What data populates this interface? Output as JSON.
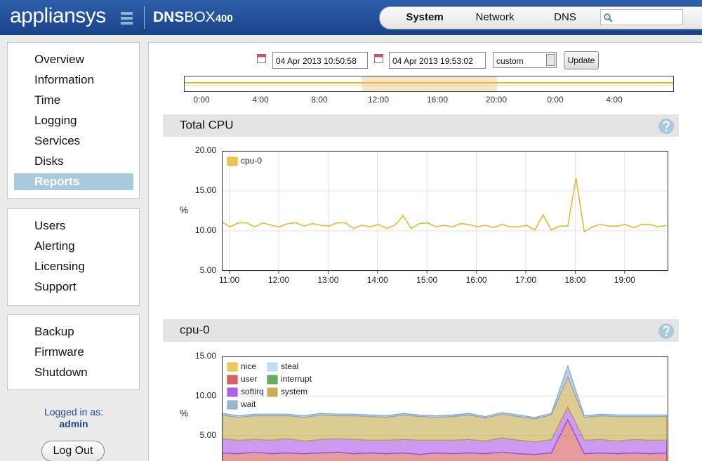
{
  "header": {
    "brand": "appliansys",
    "product": "DNS",
    "product_suffix": "BOX",
    "model": "400"
  },
  "nav": {
    "items": [
      "System",
      "Network",
      "DNS"
    ],
    "active": 0
  },
  "sidebar": {
    "groups": [
      {
        "items": [
          "Overview",
          "Information",
          "Time",
          "Logging",
          "Services",
          "Disks",
          "Reports"
        ],
        "selected": 6
      },
      {
        "items": [
          "Users",
          "Alerting",
          "Licensing",
          "Support"
        ]
      },
      {
        "items": [
          "Backup",
          "Firmware",
          "Shutdown"
        ]
      }
    ],
    "login_label": "Logged in as:",
    "user": "admin",
    "logout": "Log Out"
  },
  "toolbar": {
    "start": "04 Apr 2013 10:50:58",
    "end": "04 Apr 2013 19:53:02",
    "range": "custom",
    "button": "Update"
  },
  "timeline": {
    "labels": [
      "0:00",
      "4:00",
      "8:00",
      "12:00",
      "16:00",
      "20:00",
      "0:00",
      "4:00"
    ]
  },
  "charts": [
    {
      "type": "line",
      "title": "Total CPU",
      "ylabel": "%",
      "xlim": [
        "10:51",
        "19:53"
      ],
      "ylim": [
        5,
        20
      ],
      "yticks": [
        {
          "value": 5,
          "label": "5.00"
        },
        {
          "value": 10,
          "label": "10.00"
        },
        {
          "value": 15,
          "label": "15.00"
        },
        {
          "value": 20,
          "label": "20.00"
        }
      ],
      "xticks": [
        "11:00",
        "12:00",
        "13:00",
        "14:00",
        "15:00",
        "16:00",
        "17:00",
        "18:00",
        "19:00"
      ],
      "grid": true,
      "legend": "upper left",
      "legend_columns": 1,
      "x": [
        "10:51",
        "11:01",
        "11:11",
        "11:21",
        "11:31",
        "11:41",
        "11:51",
        "12:01",
        "12:11",
        "12:21",
        "12:31",
        "12:41",
        "12:51",
        "13:01",
        "13:11",
        "13:21",
        "13:31",
        "13:41",
        "13:51",
        "14:01",
        "14:11",
        "14:21",
        "14:31",
        "14:41",
        "14:51",
        "15:01",
        "15:11",
        "15:21",
        "15:31",
        "15:41",
        "15:51",
        "16:01",
        "16:11",
        "16:21",
        "16:31",
        "16:41",
        "16:51",
        "17:01",
        "17:11",
        "17:21",
        "17:31",
        "17:41",
        "17:51",
        "18:01",
        "18:11",
        "18:21",
        "18:31",
        "18:41",
        "18:51",
        "19:01",
        "19:11",
        "19:21",
        "19:31",
        "19:41",
        "19:51"
      ],
      "series": [
        {
          "name": "cpu-0",
          "color": "#e8b830",
          "values": [
            11.1,
            10.5,
            11.0,
            11.0,
            10.5,
            11.0,
            10.7,
            10.5,
            10.9,
            11.0,
            10.6,
            10.9,
            10.7,
            10.6,
            11.0,
            11.0,
            10.3,
            10.7,
            10.5,
            10.8,
            10.3,
            10.7,
            11.9,
            10.3,
            10.9,
            11.0,
            10.5,
            10.7,
            10.5,
            10.9,
            10.8,
            10.5,
            10.7,
            10.4,
            10.8,
            10.5,
            10.5,
            10.7,
            10.1,
            12.0,
            10.1,
            10.6,
            10.6,
            16.6,
            9.9,
            10.5,
            10.8,
            10.6,
            10.6,
            10.8,
            10.4,
            10.8,
            10.8,
            10.5,
            10.7
          ]
        }
      ]
    },
    {
      "type": "area",
      "stacked": true,
      "title": "cpu-0",
      "ylabel": "%",
      "xlim": [
        "10:51",
        "19:53"
      ],
      "ylim": [
        0,
        15
      ],
      "yticks": [
        {
          "value": 5,
          "label": "5.00"
        },
        {
          "value": 10,
          "label": "10.00"
        },
        {
          "value": 15,
          "label": "15.00"
        }
      ],
      "grid": true,
      "legend": "upper left",
      "legend_columns": 2,
      "x": [
        "10:51",
        "11:11",
        "11:31",
        "11:51",
        "12:11",
        "12:31",
        "12:51",
        "13:11",
        "13:31",
        "13:51",
        "14:11",
        "14:31",
        "14:51",
        "15:11",
        "15:31",
        "15:51",
        "16:11",
        "16:31",
        "16:51",
        "17:11",
        "17:31",
        "17:51",
        "18:11",
        "18:31",
        "18:51",
        "19:11",
        "19:31",
        "19:51"
      ],
      "series": [
        {
          "name": "nice",
          "color": "#e8c040",
          "values": [
            0,
            0,
            0,
            0,
            0,
            0,
            0,
            0,
            0,
            0,
            0,
            0,
            0,
            0,
            0,
            0,
            0,
            0,
            0,
            0,
            0,
            0,
            0,
            0,
            0,
            0,
            0,
            0
          ]
        },
        {
          "name": "steal",
          "color": "#b8d8f0",
          "values": [
            0,
            0,
            0,
            0,
            0,
            0,
            0,
            0,
            0,
            0,
            0,
            0,
            0,
            0,
            0,
            0,
            0,
            0,
            0,
            0,
            0,
            0,
            0,
            0,
            0,
            0,
            0,
            0
          ]
        },
        {
          "name": "user",
          "color": "#d04848",
          "values": [
            2.8,
            2.7,
            2.9,
            2.7,
            2.8,
            2.7,
            2.8,
            2.9,
            2.7,
            2.8,
            2.7,
            2.8,
            2.6,
            2.8,
            2.7,
            2.8,
            2.7,
            2.9,
            2.7,
            2.6,
            2.8,
            7.0,
            2.7,
            2.8,
            2.7,
            2.8,
            2.7,
            2.8
          ]
        },
        {
          "name": "interrupt",
          "color": "#48a048",
          "values": [
            0,
            0,
            0,
            0,
            0,
            0,
            0,
            0,
            0,
            0,
            0,
            0,
            0,
            0,
            0,
            0,
            0,
            0,
            0,
            0,
            0,
            0,
            0,
            0,
            0,
            0,
            0,
            0
          ]
        },
        {
          "name": "softirq",
          "color": "#a048e8",
          "values": [
            1.8,
            1.7,
            1.6,
            1.7,
            1.8,
            1.6,
            1.7,
            1.7,
            1.8,
            1.6,
            1.7,
            1.7,
            1.8,
            1.6,
            1.7,
            1.7,
            1.6,
            1.8,
            1.7,
            1.6,
            1.7,
            1.6,
            1.7,
            1.7,
            1.6,
            1.7,
            1.7,
            1.6
          ]
        },
        {
          "name": "system",
          "color": "#c0a038",
          "values": [
            3.0,
            2.9,
            3.0,
            3.1,
            2.9,
            3.0,
            3.1,
            2.9,
            3.0,
            3.0,
            2.9,
            3.1,
            3.0,
            2.9,
            3.0,
            3.1,
            2.9,
            3.0,
            3.0,
            2.9,
            3.1,
            3.8,
            2.9,
            3.0,
            3.1,
            2.9,
            3.0,
            3.0
          ]
        },
        {
          "name": "wait",
          "color": "#88a8c8",
          "values": [
            0.2,
            0.2,
            0.2,
            0.2,
            0.2,
            0.2,
            0.2,
            0.2,
            0.2,
            0.2,
            0.2,
            0.2,
            0.2,
            0.2,
            0.2,
            0.2,
            0.2,
            0.2,
            0.2,
            0.2,
            0.2,
            1.4,
            0.2,
            0.2,
            0.2,
            0.2,
            0.2,
            0.2
          ]
        }
      ]
    }
  ]
}
